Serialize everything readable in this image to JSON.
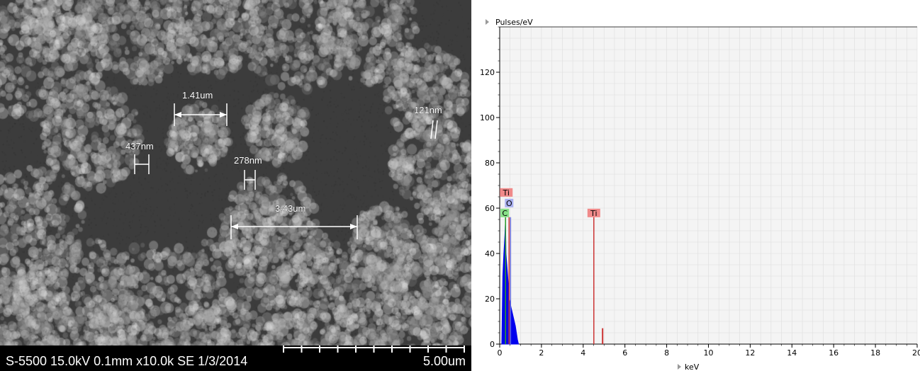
{
  "sem": {
    "info_text": "S-5500 15.0kV 0.1mm x10.0k SE 1/3/2014",
    "scale_label": "5.00um",
    "measurements": [
      {
        "label": "1.41um"
      },
      {
        "label": "437nm"
      },
      {
        "label": "278nm"
      },
      {
        "label": "121nm"
      },
      {
        "label": "3.43um"
      }
    ]
  },
  "chart_data": {
    "type": "line",
    "ylabel": "Pulses/eV",
    "xlabel": "keV",
    "xlim": [
      0,
      20
    ],
    "ylim": [
      0,
      140
    ],
    "x_ticks": [
      "0",
      "2",
      "4",
      "6",
      "8",
      "10",
      "12",
      "14",
      "16",
      "18",
      "20"
    ],
    "y_ticks": [
      "0",
      "20",
      "40",
      "60",
      "80",
      "100",
      "120"
    ],
    "grid": true,
    "spectrum": {
      "x": [
        0.1,
        0.15,
        0.2,
        0.25,
        0.28,
        0.3,
        0.35,
        0.4,
        0.45,
        0.5,
        0.55,
        0.6,
        0.65,
        0.7,
        0.75,
        0.8,
        0.85,
        0.9
      ],
      "y": [
        0,
        30,
        40,
        48,
        55,
        40,
        34,
        28,
        20,
        18,
        16,
        14,
        12,
        10,
        8,
        5,
        2,
        0
      ],
      "color": "#0000ee"
    },
    "peaks": [
      {
        "element": "C",
        "keV": 0.28,
        "height": 56,
        "line_color": "#2a9d2a",
        "label_bg": "#88e088"
      },
      {
        "element": "O",
        "keV": 0.52,
        "height": 56,
        "line_color": "#6b6bd6",
        "label_bg": "#aab0f0"
      },
      {
        "element": "Ti",
        "keV": 0.45,
        "height": 56,
        "line_color": "#cc3333",
        "label_bg": "#f08a8a"
      },
      {
        "element": "Ti",
        "keV": 4.51,
        "height": 56,
        "line_color": "#cc3333",
        "label_bg": "#f08a8a"
      }
    ],
    "minor_peaks": [
      {
        "keV": 4.93,
        "height": 7,
        "color": "#cc3333"
      }
    ]
  }
}
